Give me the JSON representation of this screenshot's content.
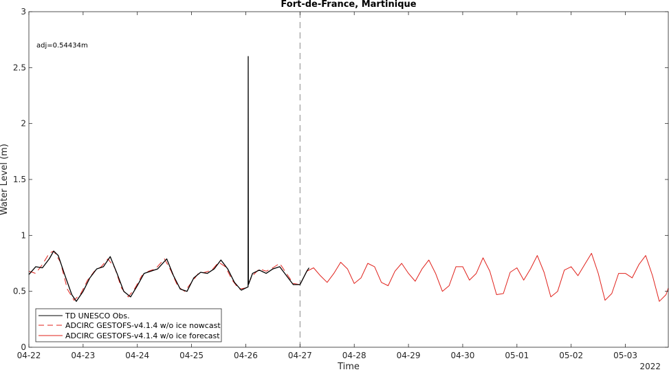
{
  "chart_data": {
    "type": "line",
    "title": "Fort-de-France, Martinique",
    "xlabel": "Time",
    "ylabel": "Water Level (m)",
    "year_label": "2022",
    "annotation": "adj=0.54434m",
    "xlim": [
      "2022-04-22T00:00",
      "2022-05-03T19:00"
    ],
    "ylim": [
      0,
      3
    ],
    "x_tick_labels": [
      "04-22",
      "04-23",
      "04-24",
      "04-25",
      "04-26",
      "04-27",
      "04-28",
      "04-29",
      "04-30",
      "05-01",
      "05-02",
      "05-03"
    ],
    "y_tick_labels": [
      "0",
      "0.5",
      "1",
      "1.5",
      "2",
      "2.5",
      "3"
    ],
    "y_ticks": [
      0,
      0.5,
      1,
      1.5,
      2,
      2.5,
      3
    ],
    "nowcast_forecast_divider": "2022-04-27T00:00",
    "legend": {
      "placement": "bottom-left",
      "entries": [
        "TD UNESCO Obs.",
        "ADCIRC GESTOFS-v4.1.4 w/o ice nowcast",
        "ADCIRC GESTOFS-v4.1.4 w/o ice forecast"
      ]
    },
    "colors": {
      "obs": "#000000",
      "nowcast": "#e0201a",
      "forecast": "#e0201a",
      "divider": "#888888"
    },
    "series": [
      {
        "name": "TD UNESCO Obs.",
        "style": "solid",
        "points": [
          [
            "2022-04-22T00:00",
            0.65
          ],
          [
            "2022-04-22T03:00",
            0.72
          ],
          [
            "2022-04-22T06:00",
            0.71
          ],
          [
            "2022-04-22T09:00",
            0.79
          ],
          [
            "2022-04-22T11:00",
            0.86
          ],
          [
            "2022-04-22T13:00",
            0.82
          ],
          [
            "2022-04-22T16:00",
            0.64
          ],
          [
            "2022-04-22T19:00",
            0.47
          ],
          [
            "2022-04-22T21:00",
            0.41
          ],
          [
            "2022-04-23T00:00",
            0.5
          ],
          [
            "2022-04-23T03:00",
            0.62
          ],
          [
            "2022-04-23T06:00",
            0.7
          ],
          [
            "2022-04-23T09:00",
            0.72
          ],
          [
            "2022-04-23T12:00",
            0.81
          ],
          [
            "2022-04-23T15:00",
            0.66
          ],
          [
            "2022-04-23T18:00",
            0.5
          ],
          [
            "2022-04-23T21:00",
            0.45
          ],
          [
            "2022-04-24T00:00",
            0.55
          ],
          [
            "2022-04-24T03:00",
            0.66
          ],
          [
            "2022-04-24T06:00",
            0.68
          ],
          [
            "2022-04-24T09:00",
            0.7
          ],
          [
            "2022-04-24T13:00",
            0.79
          ],
          [
            "2022-04-24T16:00",
            0.64
          ],
          [
            "2022-04-24T19:00",
            0.52
          ],
          [
            "2022-04-24T22:00",
            0.5
          ],
          [
            "2022-04-25T01:00",
            0.62
          ],
          [
            "2022-04-25T04:00",
            0.67
          ],
          [
            "2022-04-25T07:00",
            0.66
          ],
          [
            "2022-04-25T10:00",
            0.7
          ],
          [
            "2022-04-25T13:00",
            0.78
          ],
          [
            "2022-04-25T16:00",
            0.7
          ],
          [
            "2022-04-25T19:00",
            0.58
          ],
          [
            "2022-04-25T22:00",
            0.51
          ],
          [
            "2022-04-26T01:00",
            0.54
          ],
          [
            "2022-04-26T01:05",
            2.6
          ],
          [
            "2022-04-26T01:10",
            0.56
          ],
          [
            "2022-04-26T03:00",
            0.66
          ],
          [
            "2022-04-26T06:00",
            0.69
          ],
          [
            "2022-04-26T09:00",
            0.66
          ],
          [
            "2022-04-26T12:00",
            0.7
          ],
          [
            "2022-04-26T15:00",
            0.72
          ],
          [
            "2022-04-26T18:00",
            0.64
          ],
          [
            "2022-04-26T21:00",
            0.56
          ],
          [
            "2022-04-27T00:00",
            0.56
          ],
          [
            "2022-04-27T03:00",
            0.68
          ],
          [
            "2022-04-27T04:00",
            0.71
          ]
        ]
      },
      {
        "name": "ADCIRC GESTOFS-v4.1.4 w/o ice nowcast",
        "style": "dashed",
        "points": [
          [
            "2022-04-22T00:00",
            0.68
          ],
          [
            "2022-04-22T03:00",
            0.66
          ],
          [
            "2022-04-22T06:00",
            0.74
          ],
          [
            "2022-04-22T09:00",
            0.84
          ],
          [
            "2022-04-22T11:00",
            0.86
          ],
          [
            "2022-04-22T14:00",
            0.76
          ],
          [
            "2022-04-22T17:00",
            0.52
          ],
          [
            "2022-04-22T20:00",
            0.42
          ],
          [
            "2022-04-22T23:00",
            0.48
          ],
          [
            "2022-04-23T02:00",
            0.6
          ],
          [
            "2022-04-23T05:00",
            0.68
          ],
          [
            "2022-04-23T08:00",
            0.72
          ],
          [
            "2022-04-23T11:00",
            0.79
          ],
          [
            "2022-04-23T14:00",
            0.71
          ],
          [
            "2022-04-23T17:00",
            0.53
          ],
          [
            "2022-04-23T20:00",
            0.45
          ],
          [
            "2022-04-23T23:00",
            0.53
          ],
          [
            "2022-04-24T02:00",
            0.64
          ],
          [
            "2022-04-24T05:00",
            0.68
          ],
          [
            "2022-04-24T08:00",
            0.7
          ],
          [
            "2022-04-24T12:00",
            0.79
          ],
          [
            "2022-04-24T15:00",
            0.68
          ],
          [
            "2022-04-24T18:00",
            0.54
          ],
          [
            "2022-04-24T21:00",
            0.5
          ],
          [
            "2022-04-25T00:00",
            0.58
          ],
          [
            "2022-04-25T03:00",
            0.66
          ],
          [
            "2022-04-25T06:00",
            0.67
          ],
          [
            "2022-04-25T09:00",
            0.69
          ],
          [
            "2022-04-25T12:00",
            0.76
          ],
          [
            "2022-04-25T15:00",
            0.72
          ],
          [
            "2022-04-25T18:00",
            0.6
          ],
          [
            "2022-04-25T21:00",
            0.52
          ],
          [
            "2022-04-26T00:00",
            0.53
          ],
          [
            "2022-04-26T03:00",
            0.64
          ],
          [
            "2022-04-26T06:00",
            0.7
          ],
          [
            "2022-04-26T09:00",
            0.68
          ],
          [
            "2022-04-26T12:00",
            0.71
          ],
          [
            "2022-04-26T15:00",
            0.75
          ],
          [
            "2022-04-26T18:00",
            0.66
          ],
          [
            "2022-04-26T21:00",
            0.57
          ],
          [
            "2022-04-27T00:00",
            0.56
          ]
        ]
      },
      {
        "name": "ADCIRC GESTOFS-v4.1.4 w/o ice forecast",
        "style": "solid",
        "points": [
          [
            "2022-04-27T00:00",
            0.56
          ],
          [
            "2022-04-27T03:00",
            0.68
          ],
          [
            "2022-04-27T06:00",
            0.71
          ],
          [
            "2022-04-27T09:00",
            0.64
          ],
          [
            "2022-04-27T12:00",
            0.58
          ],
          [
            "2022-04-27T15:00",
            0.66
          ],
          [
            "2022-04-27T18:00",
            0.76
          ],
          [
            "2022-04-27T21:00",
            0.7
          ],
          [
            "2022-04-28T00:00",
            0.57
          ],
          [
            "2022-04-28T03:00",
            0.62
          ],
          [
            "2022-04-28T06:00",
            0.75
          ],
          [
            "2022-04-28T09:00",
            0.72
          ],
          [
            "2022-04-28T12:00",
            0.58
          ],
          [
            "2022-04-28T15:00",
            0.55
          ],
          [
            "2022-04-28T18:00",
            0.68
          ],
          [
            "2022-04-28T21:00",
            0.75
          ],
          [
            "2022-04-29T00:00",
            0.66
          ],
          [
            "2022-04-29T03:00",
            0.59
          ],
          [
            "2022-04-29T06:00",
            0.7
          ],
          [
            "2022-04-29T09:00",
            0.78
          ],
          [
            "2022-04-29T12:00",
            0.66
          ],
          [
            "2022-04-29T15:00",
            0.5
          ],
          [
            "2022-04-29T18:00",
            0.55
          ],
          [
            "2022-04-29T21:00",
            0.72
          ],
          [
            "2022-04-30T00:00",
            0.72
          ],
          [
            "2022-04-30T03:00",
            0.6
          ],
          [
            "2022-04-30T06:00",
            0.66
          ],
          [
            "2022-04-30T09:00",
            0.8
          ],
          [
            "2022-04-30T12:00",
            0.68
          ],
          [
            "2022-04-30T15:00",
            0.47
          ],
          [
            "2022-04-30T18:00",
            0.48
          ],
          [
            "2022-04-30T21:00",
            0.67
          ],
          [
            "2022-05-01T00:00",
            0.71
          ],
          [
            "2022-05-01T03:00",
            0.6
          ],
          [
            "2022-05-01T06:00",
            0.7
          ],
          [
            "2022-05-01T09:00",
            0.82
          ],
          [
            "2022-05-01T12:00",
            0.67
          ],
          [
            "2022-05-01T15:00",
            0.45
          ],
          [
            "2022-05-01T18:00",
            0.5
          ],
          [
            "2022-05-01T21:00",
            0.69
          ],
          [
            "2022-05-02T00:00",
            0.72
          ],
          [
            "2022-05-02T03:00",
            0.64
          ],
          [
            "2022-05-02T06:00",
            0.74
          ],
          [
            "2022-05-02T09:00",
            0.84
          ],
          [
            "2022-05-02T12:00",
            0.66
          ],
          [
            "2022-05-02T15:00",
            0.42
          ],
          [
            "2022-05-02T18:00",
            0.48
          ],
          [
            "2022-05-02T21:00",
            0.66
          ],
          [
            "2022-05-03T00:00",
            0.66
          ],
          [
            "2022-05-03T03:00",
            0.62
          ],
          [
            "2022-05-03T06:00",
            0.74
          ],
          [
            "2022-05-03T09:00",
            0.82
          ],
          [
            "2022-05-03T12:00",
            0.64
          ],
          [
            "2022-05-03T15:00",
            0.41
          ],
          [
            "2022-05-03T18:00",
            0.47
          ],
          [
            "2022-05-03T19:00",
            0.53
          ]
        ]
      }
    ]
  }
}
